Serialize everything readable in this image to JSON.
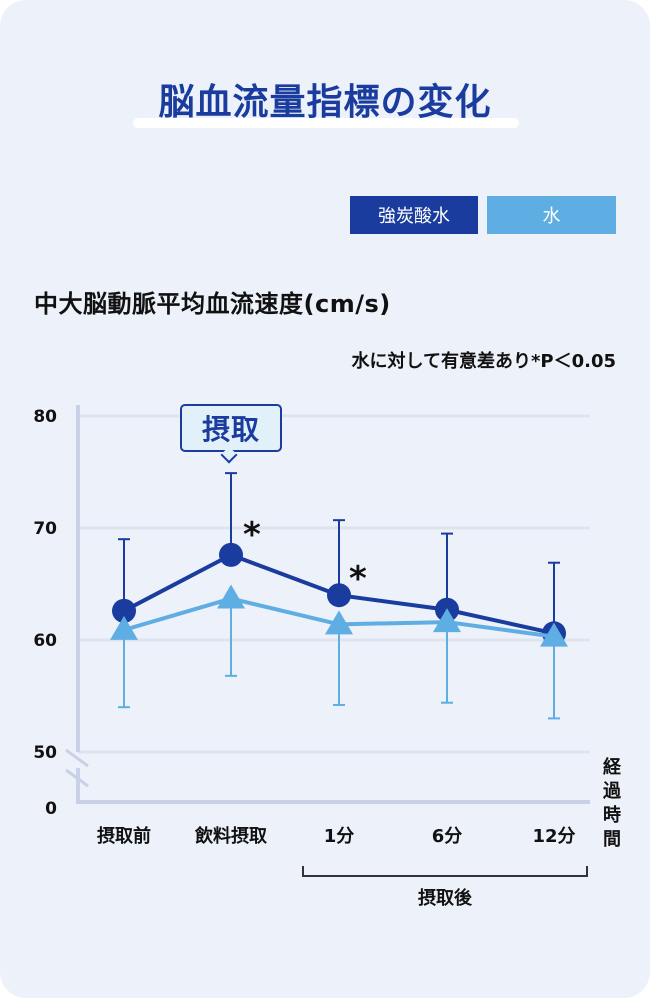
{
  "header": {
    "title": "脳血流量指標の変化"
  },
  "legend": [
    {
      "label": "強炭酸水",
      "color": "#1a3c9e"
    },
    {
      "label": "水",
      "color": "#5faee3"
    }
  ],
  "axis": {
    "y_title": "中大脳動脈平均血流速度(cm/s)",
    "note": "水に対して有意差あり*P＜0.05",
    "y_ticks": [
      "80",
      "70",
      "60",
      "50",
      "0"
    ],
    "x_ticks": [
      "摂取前",
      "飲料摂取",
      "1分",
      "6分",
      "12分"
    ],
    "x_group_label": "摂取後",
    "x_title_vertical": "経過時間"
  },
  "annotations": {
    "callout": "摂取",
    "star": "*"
  },
  "chart_data": {
    "type": "line",
    "title": "脳血流量指標の変化",
    "xlabel": "経過時間",
    "ylabel": "中大脳動脈平均血流速度(cm/s)",
    "categories": [
      "摂取前",
      "飲料摂取",
      "1分",
      "6分",
      "12分"
    ],
    "ylim": [
      50,
      80
    ],
    "y_axis_break": "0 to 50 (broken axis)",
    "grid": true,
    "legend_position": "top-right",
    "series": [
      {
        "name": "強炭酸水",
        "color": "#1a3c9e",
        "marker": "circle",
        "values": [
          62.6,
          67.6,
          64.0,
          62.7,
          60.6
        ],
        "error_upper": [
          69.0,
          74.9,
          70.7,
          69.5,
          66.9
        ]
      },
      {
        "name": "水",
        "color": "#5faee3",
        "marker": "triangle",
        "values": [
          60.9,
          63.7,
          61.4,
          61.6,
          60.3
        ],
        "error_lower": [
          54.0,
          56.8,
          54.2,
          54.4,
          53.0
        ]
      }
    ],
    "significance": {
      "marker": "*",
      "categories": [
        "飲料摂取",
        "1分"
      ],
      "note": "水に対して有意差あり*P＜0.05"
    },
    "annotations": [
      {
        "text": "摂取",
        "at": "飲料摂取"
      },
      {
        "text": "摂取後",
        "spans": [
          "1分",
          "6分",
          "12分"
        ]
      }
    ]
  }
}
